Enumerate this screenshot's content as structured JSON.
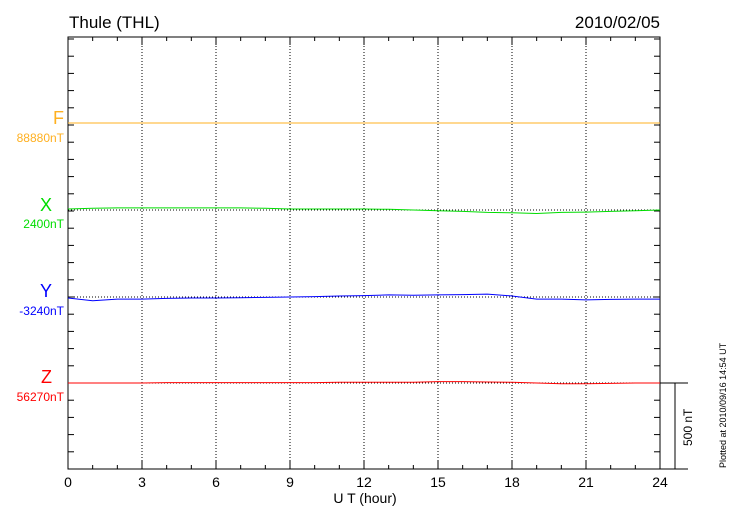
{
  "header": {
    "station": "Thule (THL)",
    "date": "2010/02/05"
  },
  "footer": {
    "plotted": "Plotted at 2010/09/16 14:54 UT"
  },
  "chart_data": {
    "type": "line",
    "xlabel": "U T (hour)",
    "xlim": [
      0,
      24
    ],
    "xticks": [
      "0",
      "3",
      "6",
      "9",
      "12",
      "15",
      "18",
      "21",
      "24"
    ],
    "grid": "vertical dotted every 3 h",
    "scale_bar": "500 nT",
    "series": [
      {
        "name": "F",
        "baseline_label": "88880nT",
        "color": "#ffb020",
        "x": [
          0,
          3,
          6,
          9,
          12,
          15,
          18,
          21,
          24
        ],
        "values": [
          0,
          0,
          0,
          0,
          0,
          0,
          0,
          0,
          0
        ]
      },
      {
        "name": "X",
        "baseline_label": "2400nT",
        "color": "#00dd00",
        "x": [
          0,
          1,
          2,
          3,
          4,
          5,
          6,
          7,
          8,
          9,
          10,
          11,
          12,
          13,
          14,
          15,
          16,
          17,
          18,
          19,
          20,
          21,
          22,
          23,
          24
        ],
        "values": [
          6,
          10,
          12,
          12,
          12,
          12,
          12,
          12,
          10,
          6,
          6,
          6,
          6,
          4,
          0,
          -4,
          -8,
          -14,
          -16,
          -20,
          -14,
          -12,
          -8,
          -4,
          0
        ]
      },
      {
        "name": "Y",
        "baseline_label": "-3240nT",
        "color": "#0000ff",
        "x": [
          0,
          1,
          2,
          3,
          4,
          5,
          6,
          7,
          8,
          9,
          10,
          11,
          12,
          13,
          14,
          15,
          16,
          17,
          18,
          19,
          20,
          21,
          22,
          23,
          24
        ],
        "values": [
          -6,
          -22,
          -12,
          -12,
          -8,
          -6,
          -6,
          -4,
          -2,
          0,
          2,
          6,
          8,
          12,
          10,
          12,
          14,
          17,
          6,
          -12,
          -12,
          -17,
          -14,
          -12,
          -12
        ]
      },
      {
        "name": "Z",
        "baseline_label": "56270nT",
        "color": "#ff0000",
        "x": [
          0,
          1,
          2,
          3,
          4,
          5,
          6,
          7,
          8,
          9,
          10,
          11,
          12,
          13,
          14,
          15,
          16,
          17,
          18,
          19,
          20,
          21,
          22,
          23,
          24
        ],
        "values": [
          0,
          0,
          0,
          0,
          2,
          2,
          2,
          2,
          2,
          2,
          2,
          4,
          4,
          4,
          4,
          8,
          8,
          6,
          4,
          0,
          -4,
          -4,
          -2,
          0,
          0
        ]
      }
    ]
  }
}
